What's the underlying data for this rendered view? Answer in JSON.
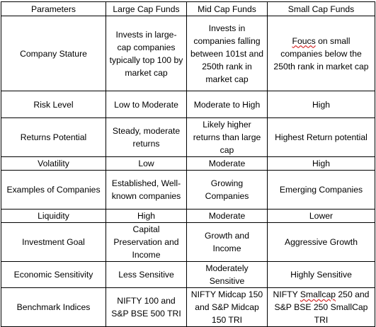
{
  "headers": [
    "Parameters",
    "Large Cap Funds",
    "Mid Cap Funds",
    "Small Cap Funds"
  ],
  "rows": [
    {
      "param": "Company Stature",
      "large": "Invests in large-cap companies typically top 100 by market cap",
      "mid": "Invests in companies falling between 101st and 250th rank in market cap",
      "small_flagged": "Foucs",
      "small_rest": " on small companies below the 250th rank in market cap"
    },
    {
      "param": "Risk Level",
      "large": "Low to Moderate",
      "mid": "Moderate to High",
      "small": "High"
    },
    {
      "param": "Returns Potential",
      "large": "Steady, moderate returns",
      "mid": "Likely higher returns than large cap",
      "small": "Highest Return potential"
    },
    {
      "param": "Volatility",
      "large": "Low",
      "mid": "Moderate",
      "small": "High"
    },
    {
      "param": "Examples of Companies",
      "large": "Established, Well-known companies",
      "mid": "Growing Companies",
      "small": "Emerging Companies"
    },
    {
      "param": "Liquidity",
      "large": "High",
      "mid": "Moderate",
      "small": "Lower"
    },
    {
      "param": "Investment Goal",
      "large": "Capital Preservation and Income",
      "mid": "Growth and Income",
      "small": "Aggressive Growth"
    },
    {
      "param": "Economic Sensitivity",
      "large": "Less Sensitive",
      "mid": "Moderately Sensitive",
      "small": "Highly Sensitive"
    },
    {
      "param": "Benchmark Indices",
      "large": "NIFTY 100 and S&P BSE 500 TRI",
      "mid": "NIFTY Midcap 150 and S&P Midcap 150 TRI",
      "small_pre": "NIFTY ",
      "small_flagged": "Smallcap",
      "small_rest": " 250 and S&P BSE 250 SmallCap TRI"
    }
  ],
  "colors": {
    "border": "#000000",
    "text": "#000000",
    "spellcheck_underline": "#d00000"
  }
}
